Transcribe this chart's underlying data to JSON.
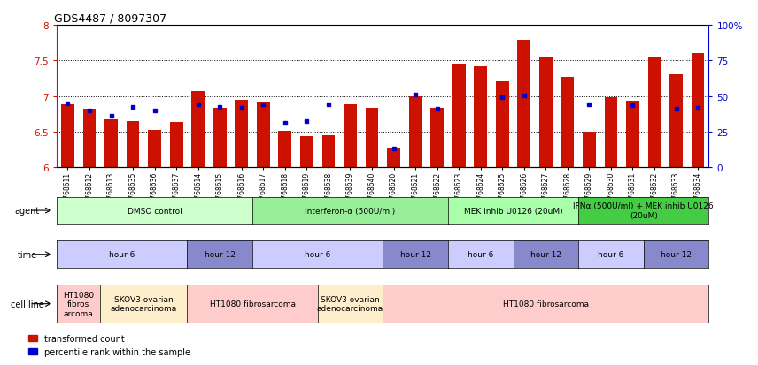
{
  "title": "GDS4487 / 8097307",
  "samples": [
    "GSM768611",
    "GSM768612",
    "GSM768613",
    "GSM768635",
    "GSM768636",
    "GSM768637",
    "GSM768614",
    "GSM768615",
    "GSM768616",
    "GSM768617",
    "GSM768618",
    "GSM768619",
    "GSM768638",
    "GSM768639",
    "GSM768640",
    "GSM768620",
    "GSM768621",
    "GSM768622",
    "GSM768623",
    "GSM768624",
    "GSM768625",
    "GSM768626",
    "GSM768627",
    "GSM768628",
    "GSM768629",
    "GSM768630",
    "GSM768631",
    "GSM768632",
    "GSM768633",
    "GSM768634"
  ],
  "bar_values": [
    6.88,
    6.82,
    6.67,
    6.65,
    6.53,
    6.64,
    7.07,
    6.83,
    6.95,
    6.92,
    6.51,
    6.44,
    6.45,
    6.88,
    6.84,
    6.27,
    7.0,
    6.83,
    7.46,
    7.42,
    7.21,
    7.79,
    7.55,
    7.27,
    6.5,
    6.98,
    6.93,
    7.55,
    7.3,
    7.6
  ],
  "dot_values": [
    6.9,
    6.8,
    6.73,
    6.85,
    6.8,
    null,
    6.88,
    6.85,
    6.84,
    6.88,
    6.63,
    6.65,
    6.88,
    null,
    null,
    6.26,
    7.02,
    6.82,
    null,
    null,
    6.98,
    7.01,
    null,
    null,
    6.89,
    null,
    6.87,
    null,
    6.82,
    6.84
  ],
  "ylim": [
    6.0,
    8.0
  ],
  "yticks": [
    6.0,
    6.5,
    7.0,
    7.5,
    8.0
  ],
  "bar_color": "#cc1100",
  "dot_color": "#0000cc",
  "bar_width": 0.6,
  "agent_groups": [
    {
      "label": "DMSO control",
      "start": 0,
      "end": 9,
      "color": "#ccffcc"
    },
    {
      "label": "interferon-α (500U/ml)",
      "start": 9,
      "end": 18,
      "color": "#99ee99"
    },
    {
      "label": "MEK inhib U0126 (20uM)",
      "start": 18,
      "end": 24,
      "color": "#aaffaa"
    },
    {
      "label": "IFNα (500U/ml) + MEK inhib U0126\n(20uM)",
      "start": 24,
      "end": 30,
      "color": "#44cc44"
    }
  ],
  "time_groups": [
    {
      "label": "hour 6",
      "start": 0,
      "end": 6,
      "color": "#ccccff"
    },
    {
      "label": "hour 12",
      "start": 6,
      "end": 9,
      "color": "#8888cc"
    },
    {
      "label": "hour 6",
      "start": 9,
      "end": 15,
      "color": "#ccccff"
    },
    {
      "label": "hour 12",
      "start": 15,
      "end": 18,
      "color": "#8888cc"
    },
    {
      "label": "hour 6",
      "start": 18,
      "end": 21,
      "color": "#ccccff"
    },
    {
      "label": "hour 12",
      "start": 21,
      "end": 24,
      "color": "#8888cc"
    },
    {
      "label": "hour 6",
      "start": 24,
      "end": 27,
      "color": "#ccccff"
    },
    {
      "label": "hour 12",
      "start": 27,
      "end": 30,
      "color": "#8888cc"
    }
  ],
  "cell_groups": [
    {
      "label": "HT1080\nfibros\narcoma",
      "start": 0,
      "end": 2,
      "color": "#ffcccc"
    },
    {
      "label": "SKOV3 ovarian\nadenocarcinoma",
      "start": 2,
      "end": 6,
      "color": "#ffeecc"
    },
    {
      "label": "HT1080 fibrosarcoma",
      "start": 6,
      "end": 12,
      "color": "#ffcccc"
    },
    {
      "label": "SKOV3 ovarian\nadenocarcinoma",
      "start": 12,
      "end": 15,
      "color": "#ffeecc"
    },
    {
      "label": "HT1080 fibrosarcoma",
      "start": 15,
      "end": 30,
      "color": "#ffcccc"
    }
  ]
}
